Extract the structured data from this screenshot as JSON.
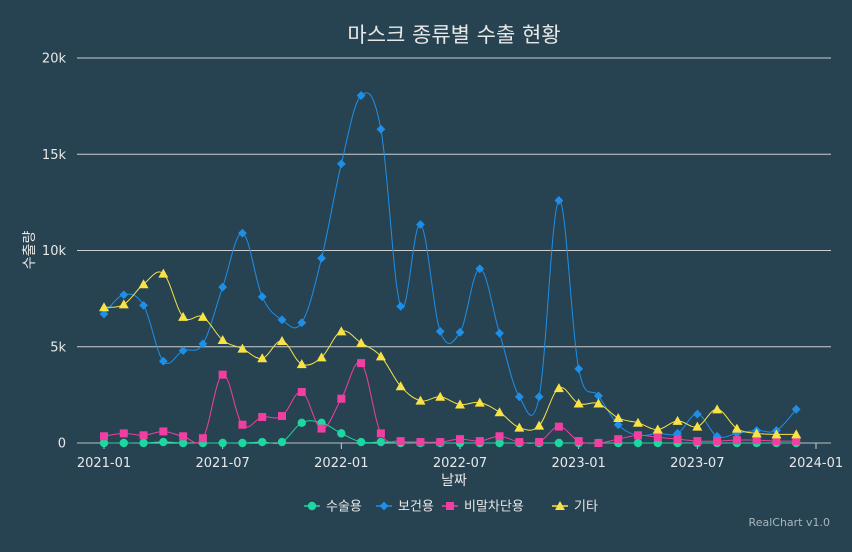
{
  "chart_data": {
    "type": "line",
    "title": "마스크 종류별 수출 현황",
    "xlabel": "날짜",
    "ylabel": "수출량",
    "ylim": [
      0,
      20000
    ],
    "y_ticks": [
      {
        "value": 0,
        "label": "0"
      },
      {
        "value": 5000,
        "label": "5k"
      },
      {
        "value": 10000,
        "label": "10k"
      },
      {
        "value": 15000,
        "label": "15k"
      },
      {
        "value": 20000,
        "label": "20k"
      }
    ],
    "x_ticks": [
      "2021-01",
      "2021-07",
      "2022-01",
      "2022-07",
      "2023-01",
      "2023-07",
      "2024-01"
    ],
    "x": [
      "2021-01",
      "2021-02",
      "2021-03",
      "2021-04",
      "2021-05",
      "2021-06",
      "2021-07",
      "2021-08",
      "2021-09",
      "2021-10",
      "2021-11",
      "2021-12",
      "2022-01",
      "2022-02",
      "2022-03",
      "2022-04",
      "2022-05",
      "2022-06",
      "2022-07",
      "2022-08",
      "2022-09",
      "2022-10",
      "2022-11",
      "2022-12",
      "2023-01",
      "2023-02",
      "2023-03",
      "2023-04",
      "2023-05",
      "2023-06",
      "2023-07",
      "2023-08",
      "2023-09",
      "2023-10",
      "2023-11",
      "2023-12"
    ],
    "series": [
      {
        "name": "수술용",
        "color": "#1ed6a0",
        "marker": "circle",
        "values": [
          0,
          0,
          0,
          50,
          0,
          0,
          0,
          0,
          50,
          50,
          1050,
          1050,
          500,
          50,
          50,
          0,
          0,
          0,
          0,
          0,
          0,
          0,
          0,
          0,
          0,
          0,
          0,
          0,
          0,
          0,
          0,
          0,
          0,
          0,
          0,
          0
        ]
      },
      {
        "name": "보건용",
        "color": "#1e8fe8",
        "marker": "diamond",
        "values": [
          6700,
          7700,
          7150,
          4250,
          4800,
          5150,
          8100,
          10900,
          7600,
          6400,
          6250,
          9600,
          14500,
          18050,
          16300,
          7100,
          11350,
          5800,
          5750,
          9050,
          5700,
          2400,
          2400,
          12600,
          3850,
          2450,
          950,
          400,
          500,
          500,
          1500,
          350,
          500,
          650,
          650,
          1750
        ]
      },
      {
        "name": "비말차단용",
        "color": "#f03fa0",
        "marker": "square",
        "values": [
          350,
          500,
          400,
          600,
          350,
          250,
          3550,
          950,
          1350,
          1400,
          2650,
          750,
          2300,
          4150,
          500,
          100,
          50,
          50,
          200,
          100,
          350,
          50,
          50,
          850,
          100,
          0,
          200,
          400,
          300,
          200,
          100,
          100,
          150,
          150,
          100,
          100
        ]
      },
      {
        "name": "기타",
        "color": "#f8e245",
        "marker": "triangle",
        "values": [
          7050,
          7200,
          8250,
          8800,
          6550,
          6550,
          5350,
          4900,
          4400,
          5300,
          4100,
          4450,
          5800,
          5200,
          4500,
          2950,
          2200,
          2400,
          2000,
          2100,
          1600,
          800,
          900,
          2850,
          2050,
          2050,
          1300,
          1050,
          700,
          1150,
          850,
          1750,
          750,
          500,
          450,
          450
        ]
      }
    ],
    "legend": "bottom",
    "grid": true,
    "credit": "RealChart v1.0"
  }
}
